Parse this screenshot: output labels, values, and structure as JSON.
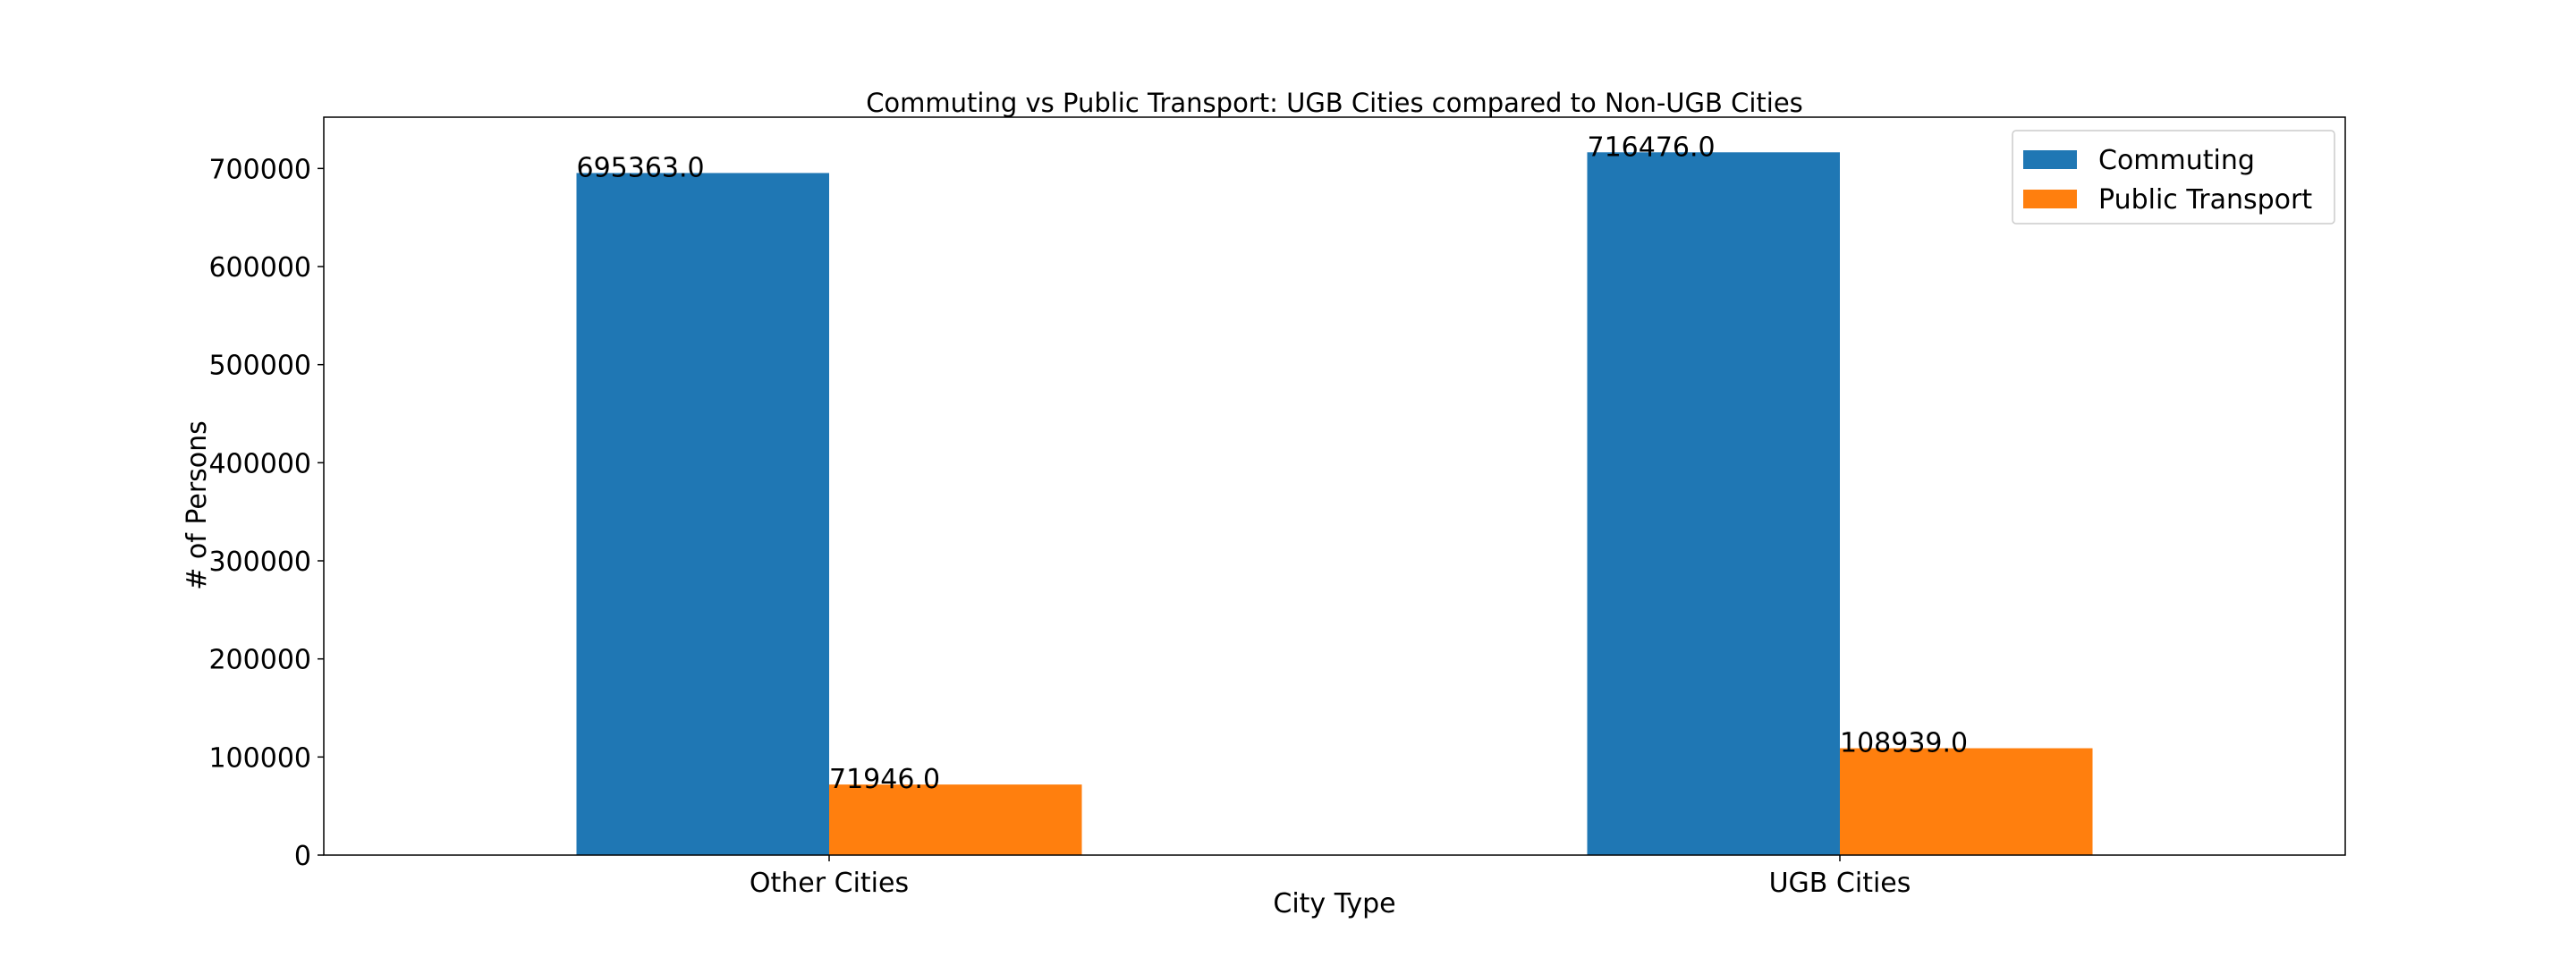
{
  "chart_data": {
    "type": "bar",
    "title": "Commuting vs Public Transport: UGB Cities compared to Non-UGB Cities",
    "xlabel": "City Type",
    "ylabel": "# of Persons",
    "categories": [
      "Other Cities",
      "UGB Cities"
    ],
    "series": [
      {
        "name": "Commuting",
        "color": "#1f77b4",
        "values": [
          695363.0,
          716476.0
        ],
        "labels": [
          "695363.0",
          "716476.0"
        ]
      },
      {
        "name": "Public Transport",
        "color": "#ff7f0e",
        "values": [
          71946.0,
          108939.0
        ],
        "labels": [
          "71946.0",
          "108939.0"
        ]
      }
    ],
    "ylim": [
      0,
      752300
    ],
    "yticks": [
      0,
      100000,
      200000,
      300000,
      400000,
      500000,
      600000,
      700000
    ],
    "ytick_labels": [
      "0",
      "100000",
      "200000",
      "300000",
      "400000",
      "500000",
      "600000",
      "700000"
    ],
    "grid": false,
    "legend_position": "top-right"
  }
}
